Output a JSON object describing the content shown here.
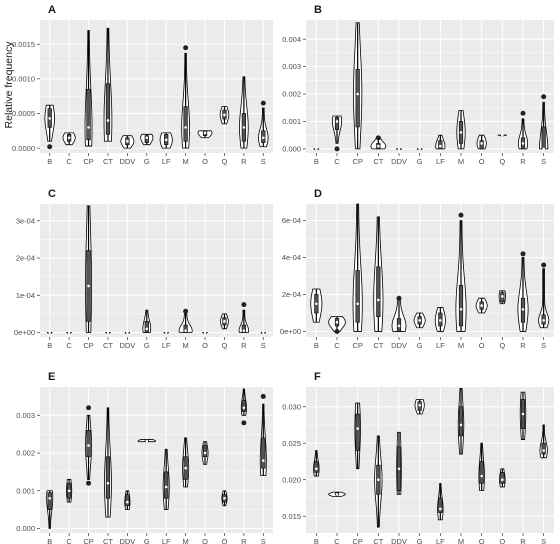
{
  "y_label": "Relative frequency",
  "chart_data": [
    {
      "type": "violin",
      "title": "A",
      "categories": [
        "B",
        "C",
        "CP",
        "CT",
        "DDV",
        "G",
        "LF",
        "M",
        "O",
        "Q",
        "R",
        "S"
      ],
      "ylim": [
        -7e-05,
        0.00185
      ],
      "yticks": [
        0,
        0.0005,
        0.001,
        0.0015
      ],
      "ytick_labels": [
        "0.0000",
        "0.0005",
        "0.0010",
        "0.0015"
      ],
      "series": [
        {
          "name": "B",
          "min": 0.0001,
          "q1": 0.0003,
          "median": 0.00043,
          "q3": 0.00057,
          "max": 0.00062,
          "width": 0.55,
          "outliers": [
            2e-05
          ]
        },
        {
          "name": "C",
          "min": 5e-05,
          "q1": 0.0001,
          "median": 0.00015,
          "q3": 0.0002,
          "max": 0.00022,
          "width": 0.7,
          "outliers": []
        },
        {
          "name": "CP",
          "min": 3e-05,
          "q1": 0.00012,
          "median": 0.0003,
          "q3": 0.00085,
          "max": 0.0017,
          "width": 0.4,
          "outliers": []
        },
        {
          "name": "CT",
          "min": 0.0001,
          "q1": 0.0002,
          "median": 0.0004,
          "q3": 0.00093,
          "max": 0.00173,
          "width": 0.45,
          "outliers": []
        },
        {
          "name": "DDV",
          "min": 0.0,
          "q1": 5e-05,
          "median": 0.0001,
          "q3": 0.00015,
          "max": 0.00018,
          "width": 0.75,
          "outliers": []
        },
        {
          "name": "G",
          "min": 5e-05,
          "q1": 8e-05,
          "median": 0.00015,
          "q3": 0.00018,
          "max": 0.0002,
          "width": 0.7,
          "outliers": []
        },
        {
          "name": "LF",
          "min": 0.0,
          "q1": 5e-05,
          "median": 0.00012,
          "q3": 0.0002,
          "max": 0.00022,
          "width": 0.7,
          "outliers": []
        },
        {
          "name": "M",
          "min": 0.0,
          "q1": 0.0001,
          "median": 0.0003,
          "q3": 0.0006,
          "max": 0.00137,
          "width": 0.45,
          "outliers": [
            0.00145
          ]
        },
        {
          "name": "O",
          "min": 0.00015,
          "q1": 0.00018,
          "median": 0.00022,
          "q3": 0.00025,
          "max": 0.00025,
          "width": 0.8,
          "outliers": []
        },
        {
          "name": "Q",
          "min": 0.00035,
          "q1": 0.00042,
          "median": 0.00048,
          "q3": 0.00055,
          "max": 0.0006,
          "width": 0.5,
          "outliers": []
        },
        {
          "name": "R",
          "min": 0.0,
          "q1": 0.0001,
          "median": 0.0003,
          "q3": 0.0005,
          "max": 0.00103,
          "width": 0.5,
          "outliers": []
        },
        {
          "name": "S",
          "min": 2e-05,
          "q1": 8e-05,
          "median": 0.00015,
          "q3": 0.00025,
          "max": 0.00058,
          "width": 0.55,
          "outliers": [
            0.00065
          ]
        }
      ]
    },
    {
      "type": "violin",
      "title": "B",
      "categories": [
        "B",
        "C",
        "CP",
        "CT",
        "DDV",
        "G",
        "LF",
        "M",
        "O",
        "Q",
        "R",
        "S"
      ],
      "ylim": [
        -0.00015,
        0.0047
      ],
      "yticks": [
        0,
        0.001,
        0.002,
        0.003,
        0.004
      ],
      "ytick_labels": [
        "0.000",
        "0.001",
        "0.002",
        "0.003",
        "0.004"
      ],
      "series": [
        {
          "name": "B",
          "min": 0.0,
          "q1": 0.0,
          "median": 0.0,
          "q3": 0.0,
          "max": 0.0,
          "width": 0.3,
          "outliers": []
        },
        {
          "name": "C",
          "min": 0.0002,
          "q1": 0.0007,
          "median": 0.001,
          "q3": 0.00115,
          "max": 0.0012,
          "width": 0.5,
          "outliers": [
            0.0
          ]
        },
        {
          "name": "CP",
          "min": 0.0,
          "q1": 0.0008,
          "median": 0.002,
          "q3": 0.0029,
          "max": 0.0046,
          "width": 0.45,
          "outliers": []
        },
        {
          "name": "CT",
          "min": 0.0,
          "q1": 0.0,
          "median": 0.0001,
          "q3": 0.0002,
          "max": 0.0004,
          "width": 0.8,
          "outliers": [
            0.0004
          ]
        },
        {
          "name": "DDV",
          "min": 0.0,
          "q1": 0.0,
          "median": 0.0,
          "q3": 0.0,
          "max": 0.0,
          "width": 0.3,
          "outliers": []
        },
        {
          "name": "G",
          "min": 0.0,
          "q1": 0.0,
          "median": 0.0,
          "q3": 0.0,
          "max": 0.0,
          "width": 0.3,
          "outliers": []
        },
        {
          "name": "LF",
          "min": 0.0,
          "q1": 0.0,
          "median": 0.0001,
          "q3": 0.0003,
          "max": 0.0005,
          "width": 0.5,
          "outliers": []
        },
        {
          "name": "M",
          "min": 0.0,
          "q1": 0.0002,
          "median": 0.0006,
          "q3": 0.001,
          "max": 0.0014,
          "width": 0.45,
          "outliers": []
        },
        {
          "name": "O",
          "min": 0.0,
          "q1": 0.0,
          "median": 0.0002,
          "q3": 0.0003,
          "max": 0.0005,
          "width": 0.5,
          "outliers": []
        },
        {
          "name": "Q",
          "min": 0.0005,
          "q1": 0.0005,
          "median": 0.0005,
          "q3": 0.0005,
          "max": 0.0005,
          "width": 0.5,
          "outliers": []
        },
        {
          "name": "R",
          "min": 0.0,
          "q1": 0.0,
          "median": 0.0002,
          "q3": 0.0004,
          "max": 0.0011,
          "width": 0.5,
          "outliers": [
            0.0013
          ]
        },
        {
          "name": "S",
          "min": 0.0,
          "q1": 0.0,
          "median": 0.0,
          "q3": 0.0008,
          "max": 0.0017,
          "width": 0.45,
          "outliers": [
            0.0019
          ]
        }
      ]
    },
    {
      "type": "violin",
      "title": "C",
      "categories": [
        "B",
        "C",
        "CP",
        "CT",
        "DDV",
        "G",
        "LF",
        "M",
        "O",
        "Q",
        "R",
        "S"
      ],
      "ylim": [
        -1.2e-05,
        0.000345
      ],
      "yticks": [
        0,
        0.0001,
        0.0002,
        0.0003
      ],
      "ytick_labels": [
        "0e+00",
        "1e-04",
        "2e-04",
        "3e-04"
      ],
      "series": [
        {
          "name": "B",
          "min": 0,
          "q1": 0,
          "median": 0,
          "q3": 0,
          "max": 0,
          "width": 0.3,
          "outliers": []
        },
        {
          "name": "C",
          "min": 0,
          "q1": 0,
          "median": 0,
          "q3": 0,
          "max": 0,
          "width": 0.3,
          "outliers": []
        },
        {
          "name": "CP",
          "min": 0,
          "q1": 3e-05,
          "median": 0.000125,
          "q3": 0.00022,
          "max": 0.00034,
          "width": 0.35,
          "outliers": []
        },
        {
          "name": "CT",
          "min": 0,
          "q1": 0,
          "median": 0,
          "q3": 0,
          "max": 0,
          "width": 0.3,
          "outliers": []
        },
        {
          "name": "DDV",
          "min": 0,
          "q1": 0,
          "median": 0,
          "q3": 0,
          "max": 0,
          "width": 0.3,
          "outliers": []
        },
        {
          "name": "G",
          "min": 0,
          "q1": 0,
          "median": 1e-05,
          "q3": 3e-05,
          "max": 6e-05,
          "width": 0.45,
          "outliers": []
        },
        {
          "name": "LF",
          "min": 0,
          "q1": 0,
          "median": 0,
          "q3": 0,
          "max": 0,
          "width": 0.3,
          "outliers": []
        },
        {
          "name": "M",
          "min": 0,
          "q1": 0,
          "median": 5e-06,
          "q3": 2e-05,
          "max": 5e-05,
          "width": 0.75,
          "outliers": [
            5.7e-05
          ]
        },
        {
          "name": "O",
          "min": 0,
          "q1": 0,
          "median": 0,
          "q3": 0,
          "max": 0,
          "width": 0.3,
          "outliers": []
        },
        {
          "name": "Q",
          "min": 1e-05,
          "q1": 2e-05,
          "median": 3e-05,
          "q3": 4e-05,
          "max": 5e-05,
          "width": 0.45,
          "outliers": []
        },
        {
          "name": "R",
          "min": 0,
          "q1": 0,
          "median": 5e-06,
          "q3": 2e-05,
          "max": 6e-05,
          "width": 0.55,
          "outliers": [
            7.5e-05
          ]
        },
        {
          "name": "S",
          "min": 0,
          "q1": 0,
          "median": 0,
          "q3": 0,
          "max": 0,
          "width": 0.3,
          "outliers": []
        }
      ]
    },
    {
      "type": "violin",
      "title": "D",
      "categories": [
        "B",
        "C",
        "CP",
        "CT",
        "DDV",
        "G",
        "LF",
        "M",
        "O",
        "Q",
        "R",
        "S"
      ],
      "ylim": [
        -3e-05,
        0.00069
      ],
      "yticks": [
        0,
        0.0002,
        0.0004,
        0.0006
      ],
      "ytick_labels": [
        "0e+00",
        "2e-04",
        "4e-04",
        "6e-04"
      ],
      "series": [
        {
          "name": "B",
          "min": 5e-05,
          "q1": 0.0001,
          "median": 0.00015,
          "q3": 0.0002,
          "max": 0.00023,
          "width": 0.6,
          "outliers": []
        },
        {
          "name": "C",
          "min": 0.0,
          "q1": 3e-05,
          "median": 5e-05,
          "q3": 7e-05,
          "max": 8e-05,
          "width": 0.9,
          "outliers": [
            0.0
          ]
        },
        {
          "name": "CP",
          "min": 0.0,
          "q1": 5e-05,
          "median": 0.00015,
          "q3": 0.00033,
          "max": 0.00069,
          "width": 0.5,
          "outliers": []
        },
        {
          "name": "CT",
          "min": 0.0,
          "q1": 8e-05,
          "median": 0.00017,
          "q3": 0.00035,
          "max": 0.00062,
          "width": 0.5,
          "outliers": []
        },
        {
          "name": "DDV",
          "min": 0.0,
          "q1": 0.0,
          "median": 3e-05,
          "q3": 7e-05,
          "max": 0.00018,
          "width": 0.75,
          "outliers": [
            0.00018
          ]
        },
        {
          "name": "G",
          "min": 2e-05,
          "q1": 4e-05,
          "median": 6e-05,
          "q3": 8e-05,
          "max": 0.0001,
          "width": 0.6,
          "outliers": []
        },
        {
          "name": "LF",
          "min": 0.0,
          "q1": 3e-05,
          "median": 6e-05,
          "q3": 0.0001,
          "max": 0.00013,
          "width": 0.55,
          "outliers": []
        },
        {
          "name": "M",
          "min": 0.0,
          "q1": 3e-05,
          "median": 0.00012,
          "q3": 0.00025,
          "max": 0.0006,
          "width": 0.55,
          "outliers": [
            0.00063
          ]
        },
        {
          "name": "O",
          "min": 0.0001,
          "q1": 0.00012,
          "median": 0.00014,
          "q3": 0.00016,
          "max": 0.00018,
          "width": 0.6,
          "outliers": []
        },
        {
          "name": "Q",
          "min": 0.00015,
          "q1": 0.00016,
          "median": 0.00019,
          "q3": 0.00021,
          "max": 0.00022,
          "width": 0.35,
          "outliers": []
        },
        {
          "name": "R",
          "min": 0.0,
          "q1": 5e-05,
          "median": 0.00012,
          "q3": 0.00018,
          "max": 0.0004,
          "width": 0.55,
          "outliers": [
            0.00042
          ]
        },
        {
          "name": "S",
          "min": 2e-05,
          "q1": 4e-05,
          "median": 6e-05,
          "q3": 9e-05,
          "max": 0.00034,
          "width": 0.55,
          "outliers": [
            0.00036
          ]
        }
      ]
    },
    {
      "type": "violin",
      "title": "E",
      "categories": [
        "B",
        "C",
        "CP",
        "CT",
        "DDV",
        "G",
        "LF",
        "M",
        "O",
        "Q",
        "R",
        "S"
      ],
      "ylim": [
        -0.00012,
        0.00375
      ],
      "yticks": [
        0,
        0.001,
        0.002,
        0.003
      ],
      "ytick_labels": [
        "0.000",
        "0.001",
        "0.002",
        "0.003"
      ],
      "series": [
        {
          "name": "B",
          "min": 0.0,
          "q1": 0.0005,
          "median": 0.0008,
          "q3": 0.00095,
          "max": 0.001,
          "width": 0.35,
          "outliers": []
        },
        {
          "name": "C",
          "min": 0.0007,
          "q1": 0.0008,
          "median": 0.001,
          "q3": 0.0012,
          "max": 0.0013,
          "width": 0.3,
          "outliers": []
        },
        {
          "name": "CP",
          "min": 0.0013,
          "q1": 0.0019,
          "median": 0.0022,
          "q3": 0.0026,
          "max": 0.003,
          "width": 0.35,
          "outliers": [
            0.0012,
            0.0032
          ]
        },
        {
          "name": "CT",
          "min": 0.0003,
          "q1": 0.0008,
          "median": 0.0012,
          "q3": 0.0019,
          "max": 0.0032,
          "width": 0.4,
          "outliers": []
        },
        {
          "name": "DDV",
          "min": 0.0005,
          "q1": 0.0006,
          "median": 0.0007,
          "q3": 0.0009,
          "max": 0.001,
          "width": 0.3,
          "outliers": []
        },
        {
          "name": "G",
          "min": 0.0023,
          "q1": 0.0023,
          "median": 0.00232,
          "q3": 0.00235,
          "max": 0.00236,
          "width": 1.0,
          "outliers": []
        },
        {
          "name": "LF",
          "min": 0.0005,
          "q1": 0.0008,
          "median": 0.0011,
          "q3": 0.0015,
          "max": 0.0021,
          "width": 0.35,
          "outliers": []
        },
        {
          "name": "M",
          "min": 0.0011,
          "q1": 0.0013,
          "median": 0.0016,
          "q3": 0.0019,
          "max": 0.0024,
          "width": 0.35,
          "outliers": []
        },
        {
          "name": "O",
          "min": 0.0017,
          "q1": 0.0019,
          "median": 0.002,
          "q3": 0.0022,
          "max": 0.0023,
          "width": 0.35,
          "outliers": []
        },
        {
          "name": "Q",
          "min": 0.0006,
          "q1": 0.0007,
          "median": 0.0008,
          "q3": 0.0009,
          "max": 0.001,
          "width": 0.3,
          "outliers": []
        },
        {
          "name": "R",
          "min": 0.003,
          "q1": 0.0031,
          "median": 0.0032,
          "q3": 0.0034,
          "max": 0.0037,
          "width": 0.3,
          "outliers": [
            0.0028
          ]
        },
        {
          "name": "S",
          "min": 0.0014,
          "q1": 0.0016,
          "median": 0.0018,
          "q3": 0.0024,
          "max": 0.0033,
          "width": 0.35,
          "outliers": [
            0.0035
          ]
        }
      ]
    },
    {
      "type": "violin",
      "title": "F",
      "categories": [
        "B",
        "C",
        "CP",
        "CT",
        "DDV",
        "G",
        "LF",
        "M",
        "O",
        "Q",
        "R",
        "S"
      ],
      "ylim": [
        0.0127,
        0.0327
      ],
      "yticks": [
        0.015,
        0.02,
        0.025,
        0.03
      ],
      "ytick_labels": [
        "0.015",
        "0.020",
        "0.025",
        "0.030"
      ],
      "series": [
        {
          "name": "B",
          "min": 0.0205,
          "q1": 0.021,
          "median": 0.0215,
          "q3": 0.0225,
          "max": 0.024,
          "width": 0.3,
          "outliers": []
        },
        {
          "name": "C",
          "min": 0.0177,
          "q1": 0.0179,
          "median": 0.018,
          "q3": 0.0182,
          "max": 0.0183,
          "width": 0.9,
          "outliers": []
        },
        {
          "name": "CP",
          "min": 0.0215,
          "q1": 0.024,
          "median": 0.027,
          "q3": 0.029,
          "max": 0.0305,
          "width": 0.3,
          "outliers": []
        },
        {
          "name": "CT",
          "min": 0.0135,
          "q1": 0.018,
          "median": 0.02,
          "q3": 0.022,
          "max": 0.026,
          "width": 0.4,
          "outliers": []
        },
        {
          "name": "DDV",
          "min": 0.018,
          "q1": 0.0185,
          "median": 0.0215,
          "q3": 0.0245,
          "max": 0.0265,
          "width": 0.25,
          "outliers": []
        },
        {
          "name": "G",
          "min": 0.029,
          "q1": 0.0295,
          "median": 0.0302,
          "q3": 0.0307,
          "max": 0.031,
          "width": 0.5,
          "outliers": []
        },
        {
          "name": "LF",
          "min": 0.0145,
          "q1": 0.0155,
          "median": 0.016,
          "q3": 0.0175,
          "max": 0.0195,
          "width": 0.3,
          "outliers": []
        },
        {
          "name": "M",
          "min": 0.0235,
          "q1": 0.026,
          "median": 0.0275,
          "q3": 0.03,
          "max": 0.0325,
          "width": 0.3,
          "outliers": []
        },
        {
          "name": "O",
          "min": 0.0185,
          "q1": 0.0195,
          "median": 0.0205,
          "q3": 0.0225,
          "max": 0.025,
          "width": 0.3,
          "outliers": []
        },
        {
          "name": "Q",
          "min": 0.019,
          "q1": 0.0195,
          "median": 0.02,
          "q3": 0.021,
          "max": 0.0215,
          "width": 0.3,
          "outliers": []
        },
        {
          "name": "R",
          "min": 0.0255,
          "q1": 0.027,
          "median": 0.029,
          "q3": 0.031,
          "max": 0.032,
          "width": 0.3,
          "outliers": []
        },
        {
          "name": "S",
          "min": 0.023,
          "q1": 0.0235,
          "median": 0.024,
          "q3": 0.025,
          "max": 0.0275,
          "width": 0.4,
          "outliers": []
        }
      ]
    }
  ]
}
